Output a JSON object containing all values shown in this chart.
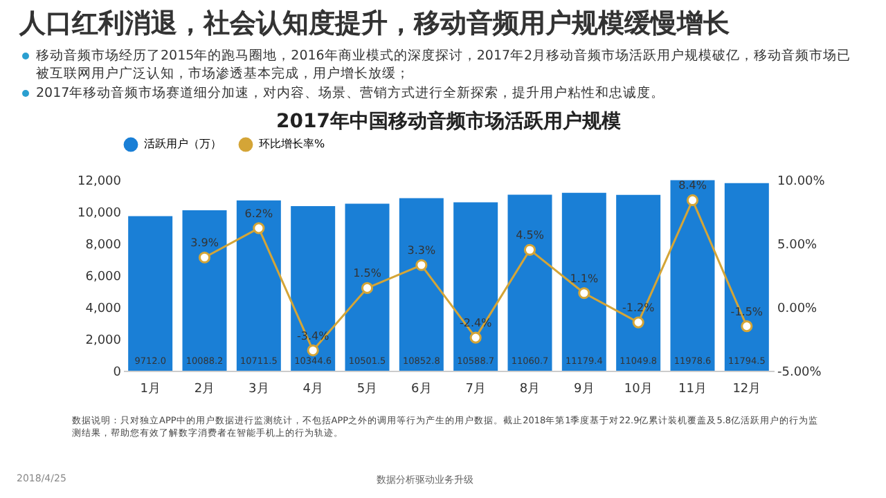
{
  "chart_data": {
    "type": "bar",
    "title": "2017年中国移动音频市场活跃用户规模",
    "annotations": [
      "人口红利消退，社会认知度提升，移动音频用户规模缓慢增长",
      "移动音频市场经历了2015年的跑马圈地，2016年商业模式的深度探讨，2017年2月移动音频市场活跃用户规模破亿，移动音频市场已被互联网用户广泛认知，市场渗透基本完成，用户增长放缓；",
      "2017年移动音频市场赛道细分加速，对内容、场景、营销方式进行全新探索，提升用户粘性和忠诚度。",
      "数据说明：只对独立APP中的用户数据进行监测统计，不包括APP之外的调用等行为产生的用户数据。截止2018年第1季度基于对22.9亿累计装机覆盖及5.8亿活跃用户的行为监测结果，帮助您有效了解数字消费者在智能手机上的行为轨迹。",
      "2018/4/25",
      "数据分析驱动业务升级"
    ],
    "categories": [
      "1月",
      "2月",
      "3月",
      "4月",
      "5月",
      "6月",
      "7月",
      "8月",
      "9月",
      "10月",
      "11月",
      "12月"
    ],
    "series": [
      {
        "name": "活跃用户（万）",
        "color": "#1a7fd6",
        "values": [
          9712.0,
          10088.2,
          10711.5,
          10344.6,
          10501.5,
          10852.8,
          10588.7,
          11060.7,
          11179.4,
          11049.8,
          11978.6,
          11794.5
        ],
        "value_labels": [
          "9712.0",
          "10088.2",
          "10711.5",
          "10344.6",
          "10501.5",
          "10852.8",
          "10588.7",
          "11060.7",
          "11179.4",
          "11049.8",
          "11978.6",
          "11794.5"
        ]
      },
      {
        "name": "环比增长率%",
        "type": "line",
        "axis": "y2",
        "color": "#d4a537",
        "marker": "circle",
        "values": [
          null,
          3.9,
          6.2,
          -3.4,
          1.5,
          3.3,
          -2.4,
          4.5,
          1.1,
          -1.2,
          8.4,
          -1.5
        ],
        "value_labels": [
          null,
          "3.9%",
          "6.2%",
          "-3.4%",
          "1.5%",
          "3.3%",
          "-2.4%",
          "4.5%",
          "1.1%",
          "-1.2%",
          "8.4%",
          "-1.5%"
        ]
      }
    ],
    "ylim": [
      0,
      12000
    ],
    "yticks": [
      {
        "value": 0,
        "label": "0"
      },
      {
        "value": 2000,
        "label": "2,000"
      },
      {
        "value": 4000,
        "label": "4,000"
      },
      {
        "value": 6000,
        "label": "6,000"
      },
      {
        "value": 8000,
        "label": "8,000"
      },
      {
        "value": 10000,
        "label": "10,000"
      },
      {
        "value": 12000,
        "label": "12,000"
      }
    ],
    "y2lim": [
      -5,
      10
    ],
    "y2ticks": [
      {
        "value": -5,
        "label": "-5.00%"
      },
      {
        "value": 0,
        "label": "0.00%"
      },
      {
        "value": 5,
        "label": "5.00%"
      },
      {
        "value": 10,
        "label": "10.00%"
      }
    ],
    "legend": "top",
    "grid": false
  }
}
